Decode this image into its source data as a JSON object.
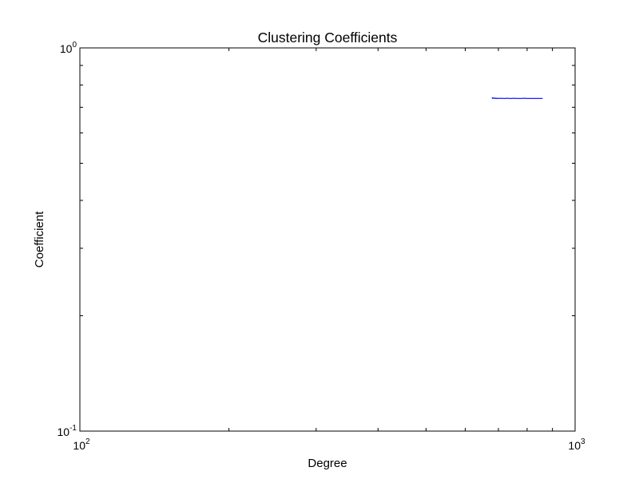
{
  "chart_data": {
    "type": "line",
    "title": "Clustering Coefficients",
    "xlabel": "Degree",
    "ylabel": "Coefficient",
    "xscale": "log",
    "yscale": "log",
    "xlim": [
      100,
      1000
    ],
    "ylim": [
      0.1,
      1
    ],
    "grid": false,
    "legend": "none",
    "x_ticks": [
      {
        "base": "10",
        "exp": "2"
      },
      {
        "base": "10",
        "exp": "3"
      }
    ],
    "y_ticks": [
      {
        "base": "10",
        "exp": "-1"
      },
      {
        "base": "10",
        "exp": "0"
      }
    ],
    "series": [
      {
        "color": "#0000ff",
        "x": [
          679,
          681,
          683,
          686,
          689,
          692,
          696,
          700,
          705,
          710,
          716,
          722,
          729,
          736,
          744,
          752,
          760,
          770,
          780,
          790,
          800,
          812,
          825,
          838,
          852,
          860
        ],
        "y": [
          0.738,
          0.741,
          0.739,
          0.74,
          0.738,
          0.739,
          0.738,
          0.739,
          0.738,
          0.739,
          0.738,
          0.738,
          0.739,
          0.738,
          0.738,
          0.739,
          0.738,
          0.738,
          0.738,
          0.739,
          0.738,
          0.738,
          0.738,
          0.738,
          0.738,
          0.738
        ]
      }
    ]
  }
}
